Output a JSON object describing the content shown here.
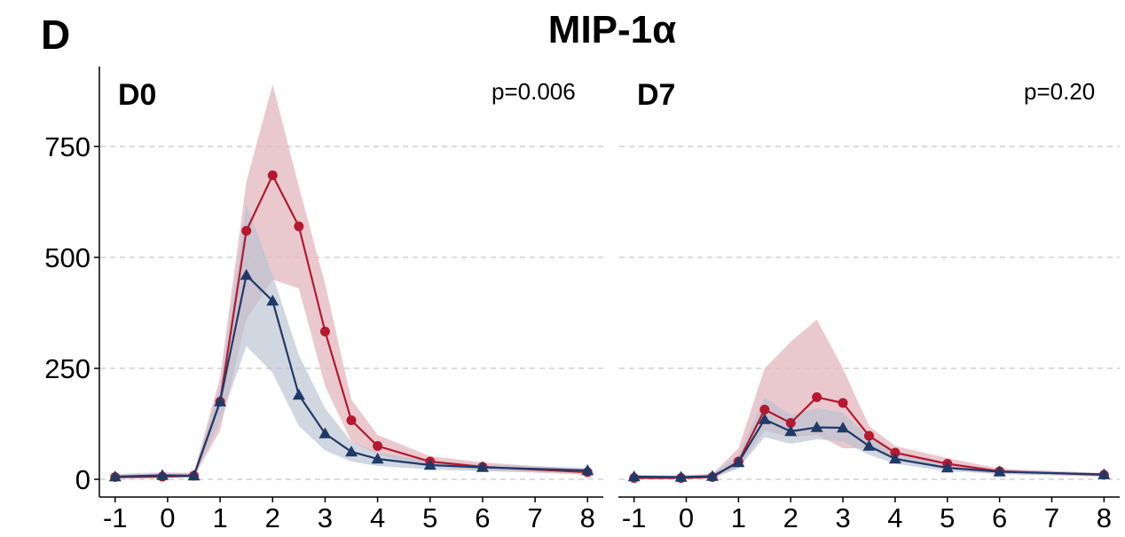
{
  "figure": {
    "panel_letter": "D",
    "title": "MIP-1α"
  },
  "colors": {
    "red": "#B5182F",
    "red_band": "#E3B7BE",
    "navy": "#1F3A68",
    "navy_band": "#B9C2D1",
    "grid": "#C8C8C8",
    "axis": "#000000"
  },
  "chart_data": [
    {
      "type": "line",
      "facet_label": "D0",
      "p_value": "p=0.006",
      "x_ticks": [
        "-1",
        "0",
        "1",
        "2",
        "3",
        "4",
        "5",
        "6",
        "7",
        "8"
      ],
      "y_ticks": [
        "0",
        "250",
        "500",
        "750"
      ],
      "xlim": [
        -1.3,
        8.3
      ],
      "ylim": [
        -40,
        930
      ],
      "grid": "horizontal dashed",
      "series": [
        {
          "color": "red",
          "marker": "circle",
          "x": [
            -1,
            -0.1,
            0.5,
            1,
            1.5,
            2,
            2.5,
            3,
            3.5,
            4,
            5,
            6,
            8
          ],
          "y": [
            5,
            6,
            8,
            175,
            560,
            685,
            570,
            333,
            133,
            75,
            40,
            28,
            16
          ],
          "lower": [
            2,
            3,
            4,
            110,
            360,
            450,
            430,
            210,
            85,
            55,
            30,
            20,
            10
          ],
          "upper": [
            10,
            12,
            15,
            230,
            670,
            890,
            660,
            440,
            180,
            100,
            52,
            38,
            22
          ]
        },
        {
          "color": "navy",
          "marker": "triangle",
          "x": [
            -1,
            -0.1,
            0.5,
            1,
            1.5,
            2,
            2.5,
            3,
            3.5,
            4,
            5,
            6,
            8
          ],
          "y": [
            6,
            9,
            8,
            175,
            460,
            402,
            190,
            103,
            62,
            46,
            32,
            27,
            20
          ],
          "lower": [
            2,
            3,
            4,
            130,
            300,
            240,
            120,
            65,
            40,
            30,
            22,
            18,
            14
          ],
          "upper": [
            12,
            16,
            14,
            210,
            620,
            460,
            280,
            160,
            85,
            60,
            42,
            33,
            26
          ]
        }
      ]
    },
    {
      "type": "line",
      "facet_label": "D7",
      "p_value": "p=0.20",
      "x_ticks": [
        "-1",
        "0",
        "1",
        "2",
        "3",
        "4",
        "5",
        "6",
        "7",
        "8"
      ],
      "y_ticks": [
        "0",
        "250",
        "500",
        "750"
      ],
      "xlim": [
        -1.3,
        8.3
      ],
      "ylim": [
        -40,
        930
      ],
      "grid": "horizontal dashed",
      "series": [
        {
          "color": "red",
          "marker": "circle",
          "x": [
            -1,
            -0.1,
            0.5,
            1,
            1.5,
            2,
            2.5,
            3,
            3.5,
            4,
            5,
            6,
            8
          ],
          "y": [
            3,
            3,
            5,
            40,
            157,
            127,
            185,
            172,
            98,
            60,
            35,
            18,
            10
          ],
          "lower": [
            1,
            1,
            2,
            25,
            110,
            95,
            100,
            70,
            70,
            45,
            22,
            12,
            6
          ],
          "upper": [
            8,
            8,
            12,
            70,
            250,
            310,
            360,
            250,
            120,
            75,
            48,
            24,
            14
          ]
        },
        {
          "color": "navy",
          "marker": "triangle",
          "x": [
            -1,
            -0.1,
            0.5,
            1,
            1.5,
            2,
            2.5,
            3,
            3.5,
            4,
            5,
            6,
            8
          ],
          "y": [
            6,
            5,
            7,
            38,
            135,
            108,
            117,
            116,
            75,
            46,
            26,
            17,
            11
          ],
          "lower": [
            2,
            2,
            3,
            25,
            95,
            80,
            90,
            85,
            55,
            35,
            18,
            12,
            7
          ],
          "upper": [
            10,
            9,
            12,
            55,
            185,
            145,
            160,
            150,
            95,
            60,
            32,
            22,
            14
          ]
        }
      ]
    }
  ]
}
